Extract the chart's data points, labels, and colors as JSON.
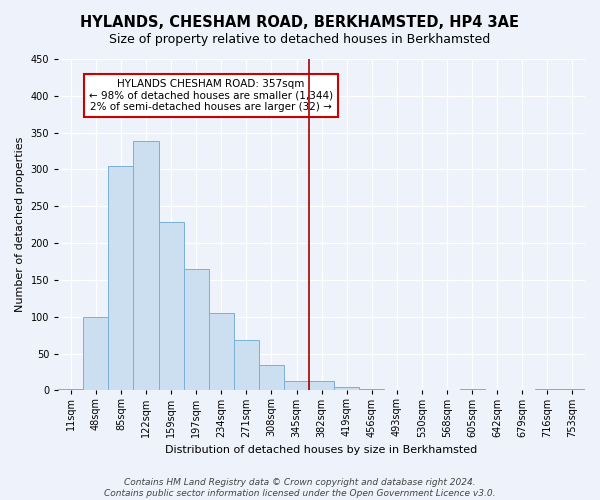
{
  "title": "HYLANDS, CHESHAM ROAD, BERKHAMSTED, HP4 3AE",
  "subtitle": "Size of property relative to detached houses in Berkhamsted",
  "xlabel": "Distribution of detached houses by size in Berkhamsted",
  "ylabel": "Number of detached properties",
  "bar_heights": [
    2,
    99,
    305,
    338,
    228,
    165,
    105,
    69,
    34,
    13,
    13,
    5,
    2,
    0,
    0,
    0,
    2,
    0,
    0,
    2,
    2
  ],
  "bar_labels": [
    "11sqm",
    "48sqm",
    "85sqm",
    "122sqm",
    "159sqm",
    "197sqm",
    "234sqm",
    "271sqm",
    "308sqm",
    "345sqm",
    "382sqm",
    "419sqm",
    "456sqm",
    "493sqm",
    "530sqm",
    "568sqm",
    "605sqm",
    "642sqm",
    "679sqm",
    "716sqm",
    "753sqm"
  ],
  "n_bins": 21,
  "bar_color": "#ccdff0",
  "bar_edge_color": "#7ab0d4",
  "vline_x": 9.5,
  "vline_color": "#aa0000",
  "ylim": [
    0,
    450
  ],
  "yticks": [
    0,
    50,
    100,
    150,
    200,
    250,
    300,
    350,
    400,
    450
  ],
  "annotation_title": "HYLANDS CHESHAM ROAD: 357sqm",
  "annotation_line1": "← 98% of detached houses are smaller (1,344)",
  "annotation_line2": "2% of semi-detached houses are larger (32) →",
  "annotation_box_color": "#ffffff",
  "annotation_box_edge": "#cc0000",
  "footer_line1": "Contains HM Land Registry data © Crown copyright and database right 2024.",
  "footer_line2": "Contains public sector information licensed under the Open Government Licence v3.0.",
  "background_color": "#eef2fa",
  "grid_color": "#ffffff",
  "title_fontsize": 10.5,
  "subtitle_fontsize": 9,
  "axis_label_fontsize": 8,
  "tick_fontsize": 7,
  "annotation_fontsize": 7.5,
  "footer_fontsize": 6.5
}
